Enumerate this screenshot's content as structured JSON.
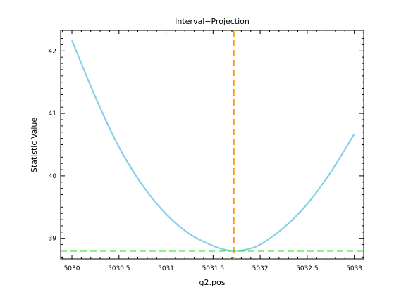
{
  "chart_data": {
    "type": "line",
    "title": "Interval−Projection",
    "xlabel": "g2.pos",
    "ylabel": "Statistic Value",
    "xlim": [
      5029.88,
      5033.1
    ],
    "ylim": [
      38.67,
      42.33
    ],
    "x_ticks": [
      5030,
      5030.5,
      5031,
      5031.5,
      5032,
      5032.5,
      5033
    ],
    "x_tick_labels": [
      "5030",
      "5030.5",
      "5031",
      "5031.5",
      "5032",
      "5032.5",
      "5033"
    ],
    "y_ticks": [
      39,
      40,
      41,
      42
    ],
    "y_tick_labels": [
      "39",
      "40",
      "41",
      "42"
    ],
    "grid": false,
    "series": [
      {
        "color": "#87ceeb",
        "x": [
          5030.0,
          5030.25,
          5030.5,
          5030.75,
          5031.0,
          5031.25,
          5031.5,
          5031.65,
          5031.75,
          5031.85,
          5032.0,
          5032.25,
          5032.5,
          5032.75,
          5033.0
        ],
        "y": [
          42.17,
          41.26,
          40.46,
          39.85,
          39.39,
          39.07,
          38.88,
          38.81,
          38.8,
          38.82,
          38.9,
          39.17,
          39.55,
          40.06,
          40.67
        ]
      }
    ],
    "reference_lines": [
      {
        "orientation": "vertical",
        "value": 5031.72,
        "color": "#ff9900",
        "style": "dashed"
      },
      {
        "orientation": "horizontal",
        "value": 38.8,
        "color": "#22dd22",
        "style": "dashed"
      }
    ]
  }
}
